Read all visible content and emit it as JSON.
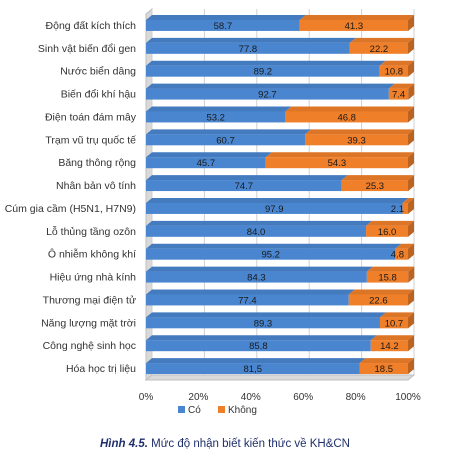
{
  "caption": {
    "number": "Hình 4.5.",
    "text": "Mức độ nhận biết kiến thức về KH&CN"
  },
  "chart_data": {
    "type": "bar",
    "orientation": "horizontal",
    "stacked": "percent",
    "categories": [
      "Động đất kích thích",
      "Sinh vật biến đổi gen",
      "Nước biển dâng",
      "Biến đổi khí hậu",
      "Điện toán đám mây",
      "Trạm vũ trụ quốc tế",
      "Băng thông rộng",
      "Nhân bản vô tính",
      "Cúm gia cầm (H5N1, H7N9)",
      "Lỗ thủng tầng ozôn",
      "Ô nhiễm không khí",
      "Hiệu ứng nhà kính",
      "Thương mại điện tử",
      "Năng lượng mặt trời",
      "Công nghệ sinh học",
      "Hóa học trị liệu"
    ],
    "series": [
      {
        "name": "Có",
        "color": "#4a86d0",
        "values": [
          58.7,
          77.8,
          89.2,
          92.7,
          53.2,
          60.7,
          45.7,
          74.7,
          97.9,
          84.0,
          95.2,
          84.3,
          77.4,
          89.3,
          85.8,
          81.5
        ]
      },
      {
        "name": "Không",
        "color": "#f07f2a",
        "values": [
          41.3,
          22.2,
          10.8,
          7.4,
          46.8,
          39.3,
          54.3,
          25.3,
          2.1,
          16.0,
          4.8,
          15.8,
          22.6,
          10.7,
          14.2,
          18.5
        ]
      }
    ],
    "value_labels": [
      [
        "58.7",
        "77.8",
        "89.2",
        "92.7",
        "53.2",
        "60.7",
        "45.7",
        "74.7",
        "97.9",
        "84.0",
        "95.2",
        "84.3",
        "77.4",
        "89.3",
        "85.8",
        "81,5"
      ],
      [
        "41.3",
        "22.2",
        "10.8",
        "7.4",
        "46.8",
        "39.3",
        "54.3",
        "25.3",
        "2.1",
        "16.0",
        "4.8",
        "15.8",
        "22.6",
        "10.7",
        "14.2",
        "18.5"
      ]
    ],
    "xlim": [
      0,
      100
    ],
    "x_ticks": [
      "0%",
      "20%",
      "40%",
      "60%",
      "80%",
      "100%"
    ],
    "grid": true,
    "legend_position": "bottom",
    "colors": {
      "co": "#4a86d0",
      "khong": "#f07f2a",
      "axis_wall": "#bfbfbf"
    }
  }
}
